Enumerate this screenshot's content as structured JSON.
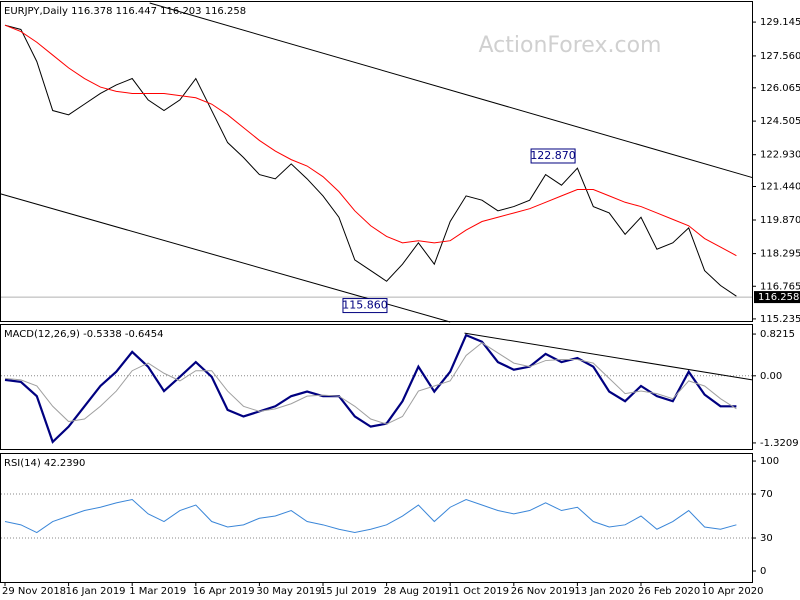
{
  "chart_data": [
    {
      "type": "line",
      "title": "EURJPY,Daily  116.378 116.447 116.203 116.258",
      "watermark": "ActionForex.com",
      "series": [
        {
          "color": "#000000",
          "values": [
            129.0,
            128.8,
            127.3,
            125.0,
            124.8,
            125.3,
            125.8,
            126.2,
            126.5,
            125.5,
            125.0,
            125.5,
            126.5,
            125.0,
            123.5,
            122.8,
            122.0,
            121.8,
            122.5,
            121.8,
            121.0,
            120.0,
            118.0,
            117.5,
            117.0,
            117.8,
            118.8,
            117.8,
            119.8,
            121.0,
            120.8,
            120.3,
            120.5,
            120.8,
            122.0,
            121.5,
            122.3,
            120.5,
            120.2,
            119.2,
            120.0,
            118.5,
            118.8,
            119.5,
            117.5,
            116.8,
            116.3
          ]
        },
        {
          "color": "#ff0000",
          "values": [
            129.0,
            128.7,
            128.2,
            127.6,
            127.0,
            126.5,
            126.1,
            125.9,
            125.8,
            125.8,
            125.8,
            125.7,
            125.6,
            125.3,
            124.8,
            124.2,
            123.6,
            123.1,
            122.7,
            122.4,
            121.9,
            121.2,
            120.3,
            119.6,
            119.1,
            118.8,
            118.9,
            118.8,
            118.9,
            119.4,
            119.8,
            120.0,
            120.2,
            120.4,
            120.7,
            121.0,
            121.3,
            121.3,
            121.0,
            120.7,
            120.5,
            120.2,
            119.9,
            119.6,
            119.0,
            118.6,
            118.2
          ]
        }
      ],
      "ylim": [
        115.09,
        130.04
      ],
      "yticks": [
        129.145,
        {
          "value": 127.56,
          "label": "127.560"
        },
        126.065,
        124.505,
        {
          "value": 122.93,
          "label": "122.930"
        },
        {
          "value": 121.44,
          "label": "121.440"
        },
        {
          "value": 119.87,
          "label": "119.870"
        },
        118.295,
        116.765,
        115.235
      ],
      "last_price": 116.258,
      "trendlines": [
        {
          "x": [
            9.1,
            47
          ],
          "y": [
            130.04,
            121.86
          ]
        },
        {
          "x": [
            -0.3,
            28
          ],
          "y": [
            121.1,
            115.09
          ]
        }
      ],
      "annotations": [
        {
          "x": 34.47,
          "value": 122.87,
          "label": "122.870"
        },
        {
          "x": 22.64,
          "value": 115.86,
          "label": "115.860"
        }
      ]
    },
    {
      "type": "line",
      "title": "MACD(12,26,9) -0.5338 -0.6454",
      "series": [
        {
          "color": "#000080",
          "values": [
            -0.08,
            -0.12,
            -0.4,
            -1.3,
            -1.0,
            -0.6,
            -0.2,
            0.08,
            0.47,
            0.18,
            -0.3,
            -0.02,
            0.27,
            -0.02,
            -0.67,
            -0.8,
            -0.7,
            -0.6,
            -0.4,
            -0.31,
            -0.4,
            -0.4,
            -0.8,
            -1.0,
            -0.94,
            -0.5,
            0.18,
            -0.31,
            0.08,
            0.8,
            0.67,
            0.27,
            0.12,
            0.18,
            0.43,
            0.27,
            0.35,
            0.18,
            -0.31,
            -0.5,
            -0.2,
            -0.4,
            -0.5,
            0.08,
            -0.37,
            -0.6,
            -0.6
          ]
        },
        {
          "color": "#a0a0a0",
          "values": [
            -0.05,
            -0.08,
            -0.2,
            -0.6,
            -0.9,
            -0.85,
            -0.6,
            -0.3,
            0.1,
            0.25,
            0.05,
            -0.1,
            0.1,
            0.1,
            -0.3,
            -0.6,
            -0.7,
            -0.65,
            -0.55,
            -0.4,
            -0.38,
            -0.4,
            -0.6,
            -0.85,
            -0.95,
            -0.8,
            -0.3,
            -0.2,
            -0.1,
            0.4,
            0.65,
            0.45,
            0.25,
            0.18,
            0.3,
            0.32,
            0.32,
            0.25,
            -0.05,
            -0.35,
            -0.3,
            -0.35,
            -0.45,
            -0.1,
            -0.2,
            -0.45,
            -0.65
          ]
        }
      ],
      "ylim": [
        -1.46,
        0.98
      ],
      "yticks": [
        0.8215,
        {
          "value": 0,
          "label": "0.00"
        },
        -1.3209
      ],
      "levels": [
        0
      ],
      "trendlines": [
        {
          "x": [
            28.9,
            47
          ],
          "y": [
            0.84,
            -0.08
          ]
        }
      ]
    },
    {
      "type": "line",
      "title": "RSI(14) 42.2390",
      "series": [
        {
          "color": "#3a86d8",
          "values": [
            45,
            42,
            35,
            45,
            50,
            55,
            58,
            62,
            65,
            52,
            45,
            55,
            60,
            45,
            40,
            42,
            48,
            50,
            55,
            45,
            42,
            38,
            35,
            38,
            42,
            50,
            60,
            45,
            58,
            65,
            60,
            55,
            52,
            55,
            62,
            55,
            58,
            45,
            40,
            42,
            50,
            38,
            45,
            55,
            40,
            38,
            42
          ]
        }
      ],
      "ylim": [
        -10.9,
        105.5
      ],
      "yticks": [
        100,
        70,
        30,
        0
      ],
      "levels": [
        70,
        30
      ],
      "categories": [
        "29 Nov 2018",
        null,
        null,
        null,
        "16 Jan 2019",
        null,
        null,
        null,
        "1 Mar 2019",
        null,
        null,
        null,
        "16 Apr 2019",
        null,
        null,
        null,
        "30 May 2019",
        null,
        null,
        null,
        "15 Jul 2019",
        null,
        null,
        null,
        "28 Aug 2019",
        null,
        null,
        null,
        "11 Oct 2019",
        null,
        null,
        null,
        "26 Nov 2019",
        null,
        null,
        null,
        "13 Jan 2020",
        null,
        null,
        null,
        "26 Feb 2020",
        null,
        null,
        null,
        "10 Apr 2020",
        null,
        null
      ]
    }
  ]
}
